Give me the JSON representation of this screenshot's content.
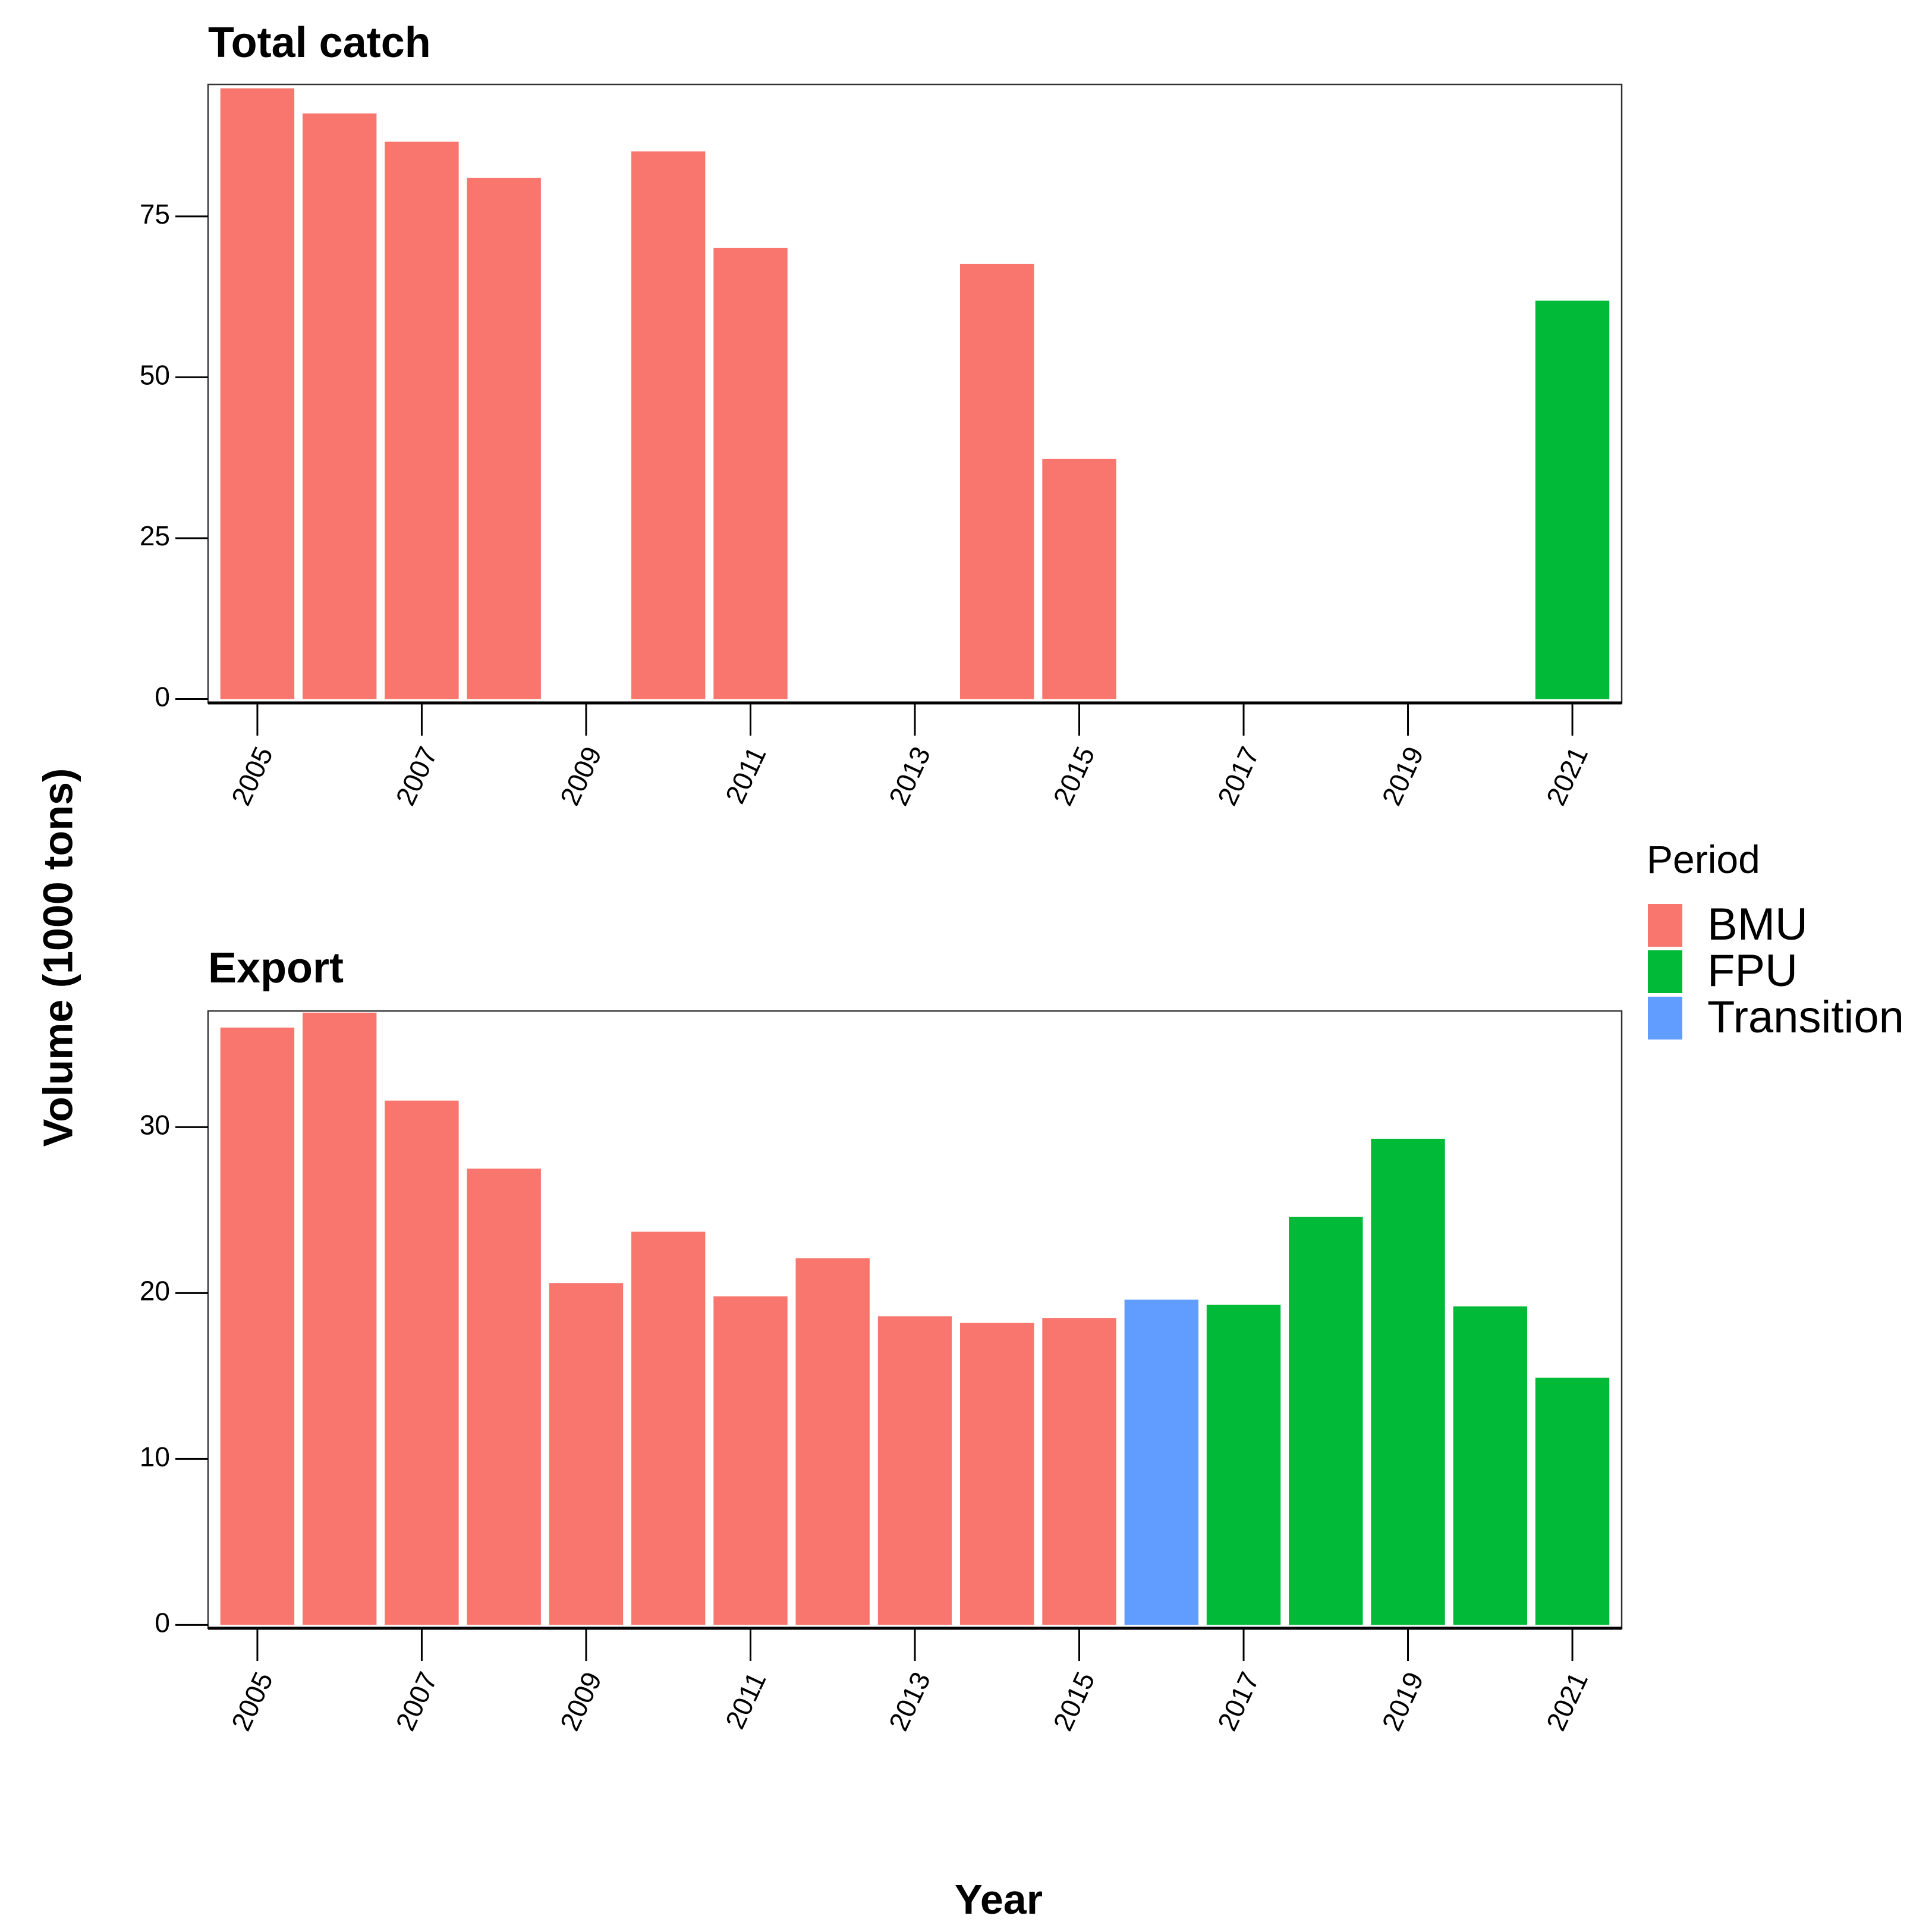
{
  "chart_data": {
    "type": "bar",
    "ylabel": "Volume (1000 tons)",
    "xlabel": "Year",
    "legend": {
      "title": "Period",
      "placement": "right",
      "entries": [
        {
          "label": "BMU",
          "color": "#F8766D"
        },
        {
          "label": "FPU",
          "color": "#00BA38"
        },
        {
          "label": "Transition",
          "color": "#619CFF"
        }
      ]
    },
    "xlim": [
      2004.4,
      2021.6
    ],
    "x_ticks": [
      "2005",
      "2007",
      "2009",
      "2011",
      "2013",
      "2015",
      "2017",
      "2019",
      "2021"
    ],
    "panels": [
      {
        "title": "Total catch",
        "ylim": [
          -0.6,
          95.5
        ],
        "y_ticks": [
          0,
          25,
          50,
          75
        ],
        "bars": [
          {
            "year": 2005,
            "value": 94.9,
            "period": "BMU"
          },
          {
            "year": 2006,
            "value": 91.0,
            "period": "BMU"
          },
          {
            "year": 2007,
            "value": 86.6,
            "period": "BMU"
          },
          {
            "year": 2008,
            "value": 81.0,
            "period": "BMU"
          },
          {
            "year": 2010,
            "value": 85.1,
            "period": "BMU"
          },
          {
            "year": 2011,
            "value": 70.1,
            "period": "BMU"
          },
          {
            "year": 2014,
            "value": 67.6,
            "period": "BMU"
          },
          {
            "year": 2015,
            "value": 37.3,
            "period": "BMU"
          },
          {
            "year": 2021,
            "value": 61.9,
            "period": "FPU"
          }
        ]
      },
      {
        "title": "Export",
        "ylim": [
          -0.2,
          37.0
        ],
        "y_ticks": [
          0,
          10,
          20,
          30
        ],
        "bars": [
          {
            "year": 2005,
            "value": 36.0,
            "period": "BMU"
          },
          {
            "year": 2006,
            "value": 36.9,
            "period": "BMU"
          },
          {
            "year": 2007,
            "value": 31.6,
            "period": "BMU"
          },
          {
            "year": 2008,
            "value": 27.5,
            "period": "BMU"
          },
          {
            "year": 2009,
            "value": 20.6,
            "period": "BMU"
          },
          {
            "year": 2010,
            "value": 23.7,
            "period": "BMU"
          },
          {
            "year": 2011,
            "value": 19.8,
            "period": "BMU"
          },
          {
            "year": 2012,
            "value": 22.1,
            "period": "BMU"
          },
          {
            "year": 2013,
            "value": 18.6,
            "period": "BMU"
          },
          {
            "year": 2014,
            "value": 18.2,
            "period": "BMU"
          },
          {
            "year": 2015,
            "value": 18.5,
            "period": "BMU"
          },
          {
            "year": 2016,
            "value": 19.6,
            "period": "Transition"
          },
          {
            "year": 2017,
            "value": 19.3,
            "period": "FPU"
          },
          {
            "year": 2018,
            "value": 24.6,
            "period": "FPU"
          },
          {
            "year": 2019,
            "value": 29.3,
            "period": "FPU"
          },
          {
            "year": 2020,
            "value": 19.2,
            "period": "FPU"
          },
          {
            "year": 2021,
            "value": 14.9,
            "period": "FPU"
          }
        ]
      }
    ]
  }
}
